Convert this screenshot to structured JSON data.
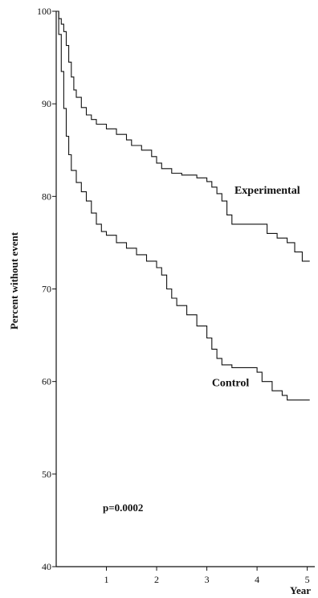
{
  "chart_data": {
    "type": "line",
    "step": true,
    "title": "",
    "xlabel": "Year",
    "ylabel": "Percent without event",
    "xlim": [
      0,
      5.15
    ],
    "ylim": [
      40,
      100
    ],
    "x_ticks": [
      1,
      2,
      3,
      4,
      5
    ],
    "y_ticks": [
      40,
      50,
      60,
      70,
      80,
      90,
      100
    ],
    "grid": false,
    "annotation": "p=0.0002",
    "series": [
      {
        "name": "Experimental",
        "label_x": 3.55,
        "label_y": 80.3,
        "points": [
          [
            0,
            100
          ],
          [
            0.05,
            99.2
          ],
          [
            0.1,
            98.6
          ],
          [
            0.15,
            97.8
          ],
          [
            0.2,
            96.3
          ],
          [
            0.25,
            94.5
          ],
          [
            0.3,
            92.9
          ],
          [
            0.35,
            91.5
          ],
          [
            0.4,
            90.7
          ],
          [
            0.5,
            89.6
          ],
          [
            0.6,
            88.8
          ],
          [
            0.7,
            88.3
          ],
          [
            0.8,
            87.8
          ],
          [
            1.0,
            87.3
          ],
          [
            1.2,
            86.7
          ],
          [
            1.4,
            86.1
          ],
          [
            1.5,
            85.5
          ],
          [
            1.7,
            85.0
          ],
          [
            1.9,
            84.3
          ],
          [
            2.0,
            83.6
          ],
          [
            2.1,
            83.0
          ],
          [
            2.3,
            82.5
          ],
          [
            2.5,
            82.3
          ],
          [
            2.8,
            82.0
          ],
          [
            3.0,
            81.6
          ],
          [
            3.1,
            81.0
          ],
          [
            3.2,
            80.3
          ],
          [
            3.3,
            79.5
          ],
          [
            3.4,
            78.0
          ],
          [
            3.5,
            77.0
          ],
          [
            3.8,
            77.0
          ],
          [
            4.0,
            77.0
          ],
          [
            4.2,
            76.0
          ],
          [
            4.4,
            75.5
          ],
          [
            4.6,
            75.0
          ],
          [
            4.75,
            74.0
          ],
          [
            4.9,
            73.0
          ],
          [
            5.05,
            73.0
          ]
        ]
      },
      {
        "name": "Control",
        "label_x": 3.1,
        "label_y": 59.5,
        "points": [
          [
            0,
            100
          ],
          [
            0.05,
            97.5
          ],
          [
            0.1,
            93.5
          ],
          [
            0.15,
            89.5
          ],
          [
            0.2,
            86.5
          ],
          [
            0.25,
            84.5
          ],
          [
            0.3,
            82.8
          ],
          [
            0.4,
            81.5
          ],
          [
            0.5,
            80.5
          ],
          [
            0.6,
            79.5
          ],
          [
            0.7,
            78.2
          ],
          [
            0.8,
            77.0
          ],
          [
            0.9,
            76.2
          ],
          [
            1.0,
            75.8
          ],
          [
            1.2,
            75.0
          ],
          [
            1.4,
            74.4
          ],
          [
            1.6,
            73.7
          ],
          [
            1.8,
            73.0
          ],
          [
            2.0,
            72.3
          ],
          [
            2.1,
            71.5
          ],
          [
            2.2,
            70.0
          ],
          [
            2.3,
            69.0
          ],
          [
            2.4,
            68.2
          ],
          [
            2.6,
            67.2
          ],
          [
            2.8,
            66.0
          ],
          [
            3.0,
            64.7
          ],
          [
            3.1,
            63.5
          ],
          [
            3.2,
            62.5
          ],
          [
            3.3,
            61.8
          ],
          [
            3.5,
            61.5
          ],
          [
            3.8,
            61.5
          ],
          [
            4.0,
            61.0
          ],
          [
            4.1,
            60.0
          ],
          [
            4.3,
            59.0
          ],
          [
            4.5,
            58.5
          ],
          [
            4.6,
            58.0
          ],
          [
            4.8,
            58.0
          ],
          [
            5.05,
            58.0
          ]
        ]
      }
    ]
  }
}
